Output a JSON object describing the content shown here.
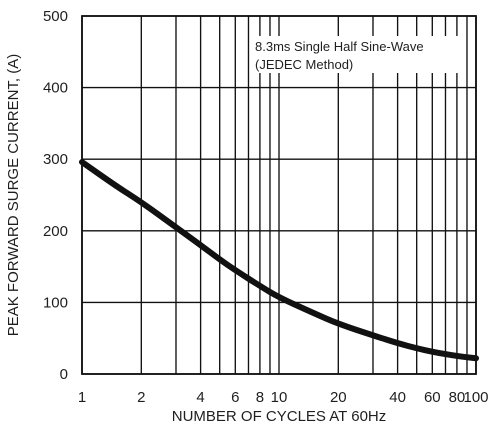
{
  "chart_data": {
    "type": "line",
    "x_scale": "log",
    "y_scale": "linear",
    "xlim": [
      1,
      100
    ],
    "ylim": [
      0,
      500
    ],
    "xlabel": "NUMBER OF CYCLES AT 60Hz",
    "ylabel": "PEAK FORWARD SURGE CURRENT, (A)",
    "grid": true,
    "x_ticks": [
      1,
      2,
      4,
      6,
      8,
      10,
      20,
      40,
      60,
      80,
      100
    ],
    "x_tick_labels": [
      "1",
      "2",
      "4",
      "6",
      "8",
      "10",
      "20",
      "40",
      "60",
      "80",
      "100"
    ],
    "x_grid": [
      1,
      2,
      3,
      4,
      5,
      6,
      7,
      8,
      9,
      10,
      20,
      30,
      40,
      50,
      60,
      70,
      80,
      90,
      100
    ],
    "y_ticks": [
      0,
      100,
      200,
      300,
      400,
      500
    ],
    "y_tick_labels": [
      "0",
      "100",
      "200",
      "300",
      "400",
      "500"
    ],
    "annotations": [
      "8.3ms Single Half Sine-Wave",
      "(JEDEC Method)"
    ],
    "series": [
      {
        "color": "#111111",
        "points": [
          {
            "x": 1,
            "y": 296
          },
          {
            "x": 1.5,
            "y": 262
          },
          {
            "x": 2,
            "y": 240
          },
          {
            "x": 3,
            "y": 205
          },
          {
            "x": 4,
            "y": 180
          },
          {
            "x": 5,
            "y": 160
          },
          {
            "x": 6,
            "y": 145
          },
          {
            "x": 8,
            "y": 123
          },
          {
            "x": 10,
            "y": 107
          },
          {
            "x": 15,
            "y": 85
          },
          {
            "x": 20,
            "y": 70
          },
          {
            "x": 30,
            "y": 54
          },
          {
            "x": 40,
            "y": 43
          },
          {
            "x": 50,
            "y": 36
          },
          {
            "x": 60,
            "y": 31
          },
          {
            "x": 80,
            "y": 25
          },
          {
            "x": 100,
            "y": 22
          }
        ]
      }
    ]
  }
}
